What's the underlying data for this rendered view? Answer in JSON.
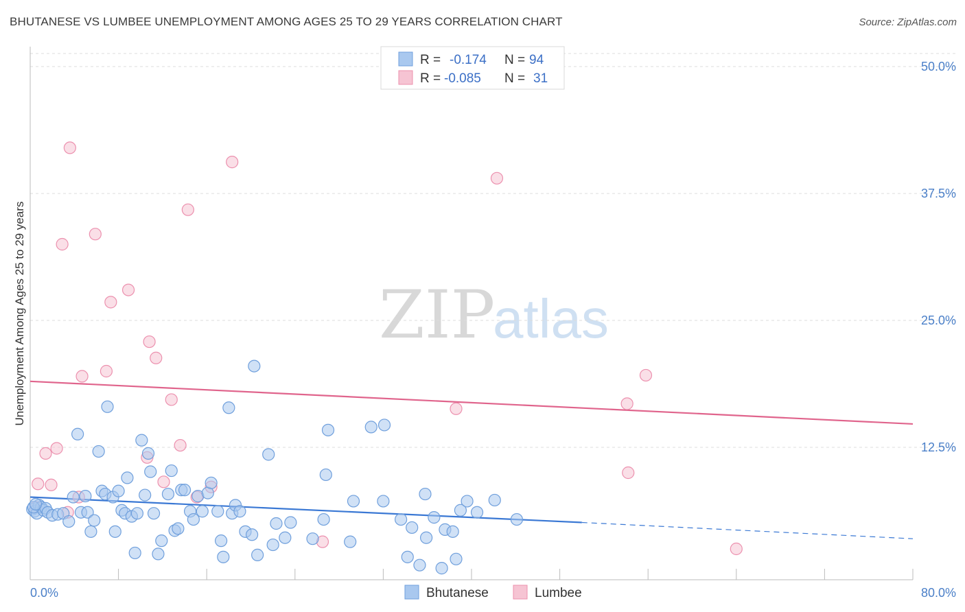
{
  "title": "BHUTANESE VS LUMBEE UNEMPLOYMENT AMONG AGES 25 TO 29 YEARS CORRELATION CHART",
  "source": "Source: ZipAtlas.com",
  "watermark": {
    "zip": "ZIP",
    "atlas": "atlas"
  },
  "colors": {
    "bhutanese_fill": "#a9c8ef",
    "bhutanese_stroke": "#6f9fdc",
    "bhutanese_line": "#3a78d4",
    "lumbee_fill": "#f6c4d3",
    "lumbee_stroke": "#ec90ae",
    "lumbee_line": "#e0648c",
    "grid": "#dcdcdc",
    "tick_text": "#4a7fc8"
  },
  "legend": {
    "rows": [
      {
        "r_label": "R =",
        "r_value": "-0.174",
        "n_label": "N =",
        "n_value": "94"
      },
      {
        "r_label": "R =",
        "r_value": "-0.085",
        "n_label": "N =",
        "n_value": "31"
      }
    ]
  },
  "bottom_legend": [
    "Bhutanese",
    "Lumbee"
  ],
  "chart_data": {
    "type": "scatter",
    "title": "BHUTANESE VS LUMBEE UNEMPLOYMENT AMONG AGES 25 TO 29 YEARS CORRELATION CHART",
    "xlabel": "",
    "ylabel": "Unemployment Among Ages 25 to 29 years",
    "xlim": [
      0,
      80
    ],
    "ylim": [
      0,
      52
    ],
    "x_tick_labels": [
      "0.0%",
      "80.0%"
    ],
    "y_ticks": [
      12.5,
      25.0,
      37.5,
      50.0
    ],
    "y_tick_labels": [
      "12.5%",
      "25.0%",
      "37.5%",
      "50.0%"
    ],
    "grid": true,
    "legend_position": "top-center",
    "series": [
      {
        "name": "Bhutanese",
        "points": [
          [
            0.2,
            6.4
          ],
          [
            0.4,
            6.2
          ],
          [
            0.6,
            6.0
          ],
          [
            0.8,
            6.8
          ],
          [
            1.0,
            6.6
          ],
          [
            1.2,
            6.3
          ],
          [
            1.4,
            6.5
          ],
          [
            1.6,
            6.1
          ],
          [
            0.3,
            6.6
          ],
          [
            0.5,
            6.9
          ],
          [
            2.0,
            5.8
          ],
          [
            2.5,
            5.9
          ],
          [
            3.0,
            6.0
          ],
          [
            3.5,
            5.2
          ],
          [
            3.9,
            7.6
          ],
          [
            4.3,
            13.8
          ],
          [
            4.6,
            6.1
          ],
          [
            5.0,
            7.7
          ],
          [
            5.2,
            6.1
          ],
          [
            5.5,
            4.2
          ],
          [
            5.8,
            5.3
          ],
          [
            6.2,
            12.1
          ],
          [
            6.5,
            8.2
          ],
          [
            6.8,
            7.9
          ],
          [
            7.0,
            16.5
          ],
          [
            7.5,
            7.6
          ],
          [
            7.7,
            4.2
          ],
          [
            8.0,
            8.2
          ],
          [
            8.3,
            6.3
          ],
          [
            8.6,
            6.0
          ],
          [
            8.8,
            9.5
          ],
          [
            9.2,
            5.7
          ],
          [
            9.5,
            2.1
          ],
          [
            9.7,
            6.0
          ],
          [
            10.1,
            13.2
          ],
          [
            10.4,
            7.8
          ],
          [
            10.7,
            11.9
          ],
          [
            10.9,
            10.1
          ],
          [
            11.2,
            6.0
          ],
          [
            11.6,
            2.0
          ],
          [
            11.9,
            3.3
          ],
          [
            12.5,
            7.9
          ],
          [
            12.8,
            10.2
          ],
          [
            13.1,
            4.3
          ],
          [
            13.4,
            4.5
          ],
          [
            13.7,
            8.3
          ],
          [
            14.0,
            8.3
          ],
          [
            14.5,
            6.2
          ],
          [
            14.8,
            5.4
          ],
          [
            15.2,
            7.7
          ],
          [
            15.6,
            6.2
          ],
          [
            16.1,
            8.0
          ],
          [
            16.4,
            9.0
          ],
          [
            17.0,
            6.2
          ],
          [
            17.3,
            3.3
          ],
          [
            17.5,
            1.7
          ],
          [
            18.0,
            16.4
          ],
          [
            18.3,
            6.0
          ],
          [
            18.6,
            6.8
          ],
          [
            19.0,
            6.2
          ],
          [
            19.5,
            4.2
          ],
          [
            20.1,
            3.9
          ],
          [
            20.3,
            20.5
          ],
          [
            20.6,
            1.9
          ],
          [
            21.6,
            11.8
          ],
          [
            22.0,
            2.9
          ],
          [
            22.3,
            5.0
          ],
          [
            23.1,
            3.6
          ],
          [
            23.6,
            5.1
          ],
          [
            25.6,
            3.5
          ],
          [
            26.6,
            5.4
          ],
          [
            26.8,
            9.8
          ],
          [
            27.0,
            14.2
          ],
          [
            29.0,
            3.2
          ],
          [
            29.3,
            7.2
          ],
          [
            30.9,
            14.5
          ],
          [
            32.0,
            7.2
          ],
          [
            32.1,
            14.7
          ],
          [
            33.6,
            5.4
          ],
          [
            34.2,
            1.7
          ],
          [
            34.6,
            4.6
          ],
          [
            35.3,
            0.9
          ],
          [
            35.8,
            7.9
          ],
          [
            35.9,
            3.6
          ],
          [
            36.6,
            5.6
          ],
          [
            37.3,
            0.6
          ],
          [
            37.6,
            4.4
          ],
          [
            38.3,
            4.2
          ],
          [
            38.6,
            1.5
          ],
          [
            39.0,
            6.3
          ],
          [
            39.6,
            7.2
          ],
          [
            40.5,
            6.1
          ],
          [
            42.1,
            7.3
          ],
          [
            44.1,
            5.4
          ]
        ]
      },
      {
        "name": "Lumbee",
        "points": [
          [
            0.5,
            6.6
          ],
          [
            0.7,
            8.9
          ],
          [
            1.4,
            11.9
          ],
          [
            1.9,
            8.8
          ],
          [
            2.4,
            12.4
          ],
          [
            2.9,
            32.5
          ],
          [
            3.4,
            6.1
          ],
          [
            3.6,
            42.0
          ],
          [
            4.4,
            7.6
          ],
          [
            4.7,
            19.5
          ],
          [
            5.9,
            33.5
          ],
          [
            6.9,
            20.0
          ],
          [
            7.3,
            26.8
          ],
          [
            8.9,
            28.0
          ],
          [
            10.6,
            11.5
          ],
          [
            10.8,
            22.9
          ],
          [
            11.4,
            21.3
          ],
          [
            12.1,
            9.1
          ],
          [
            12.8,
            17.2
          ],
          [
            13.6,
            12.7
          ],
          [
            14.3,
            35.9
          ],
          [
            15.1,
            7.6
          ],
          [
            16.4,
            8.6
          ],
          [
            18.3,
            40.6
          ],
          [
            26.5,
            3.2
          ],
          [
            38.6,
            16.3
          ],
          [
            42.3,
            39.0
          ],
          [
            54.1,
            16.8
          ],
          [
            54.2,
            10.0
          ],
          [
            55.8,
            19.6
          ],
          [
            64.0,
            2.5
          ]
        ]
      }
    ],
    "trend_lines": [
      {
        "name": "Bhutanese",
        "x0": 0,
        "y0": 7.6,
        "x1": 50,
        "y1": 5.1,
        "dashed_to_x": 80,
        "dashed_to_y": 3.5
      },
      {
        "name": "Lumbee",
        "x0": 0,
        "y0": 19.0,
        "x1": 80,
        "y1": 14.8
      }
    ]
  }
}
